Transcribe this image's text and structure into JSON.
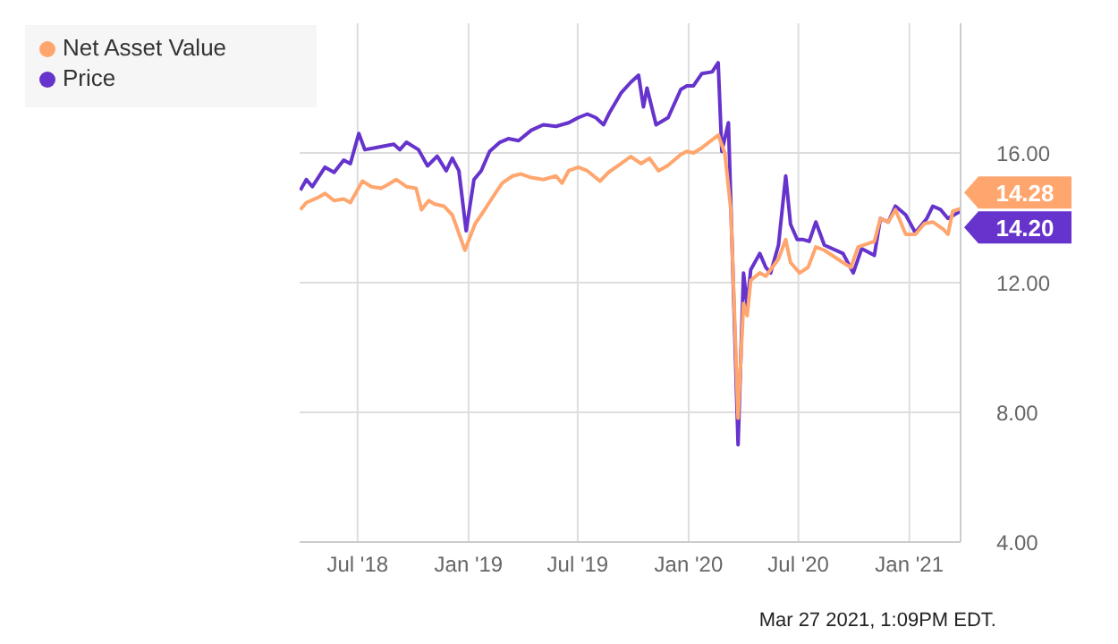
{
  "chart_data": {
    "type": "line",
    "xlim": [
      "2018-03-27",
      "2021-03-27"
    ],
    "xticks": [
      {
        "value": "2018-07-01",
        "label": "Jul '18"
      },
      {
        "value": "2019-01-01",
        "label": "Jan '19"
      },
      {
        "value": "2019-07-01",
        "label": "Jul '19"
      },
      {
        "value": "2020-01-01",
        "label": "Jan '20"
      },
      {
        "value": "2020-07-01",
        "label": "Jul '20"
      },
      {
        "value": "2021-01-01",
        "label": "Jan '21"
      }
    ],
    "ylim": [
      4,
      20
    ],
    "yticks": [
      {
        "value": 4,
        "label": "4.00"
      },
      {
        "value": 8,
        "label": "8.00"
      },
      {
        "value": 12,
        "label": "12.00"
      },
      {
        "value": 16,
        "label": "16.00"
      }
    ],
    "grid": true,
    "legend": "top left",
    "marker": "none",
    "series": [
      {
        "name": "Price",
        "color": "#6633cc",
        "x": [
          "2018-03-28",
          "2018-04-07",
          "2018-04-17",
          "2018-05-08",
          "2018-05-23",
          "2018-06-08",
          "2018-06-19",
          "2018-07-03",
          "2018-07-13",
          "2018-07-30",
          "2018-08-30",
          "2018-09-09",
          "2018-09-20",
          "2018-10-10",
          "2018-10-25",
          "2018-11-10",
          "2018-11-25",
          "2018-12-05",
          "2018-12-16",
          "2018-12-28",
          "2019-01-10",
          "2019-01-22",
          "2019-02-05",
          "2019-02-22",
          "2019-03-08",
          "2019-03-25",
          "2019-04-15",
          "2019-05-05",
          "2019-05-26",
          "2019-06-16",
          "2019-07-02",
          "2019-07-17",
          "2019-07-31",
          "2019-08-13",
          "2019-08-23",
          "2019-09-11",
          "2019-09-27",
          "2019-10-10",
          "2019-10-18",
          "2019-10-24",
          "2019-11-08",
          "2019-11-28",
          "2019-12-19",
          "2019-12-29",
          "2020-01-09",
          "2020-01-23",
          "2020-02-09",
          "2020-02-19",
          "2020-02-25",
          "2020-03-07",
          "2020-03-23",
          "2020-04-01",
          "2020-04-07",
          "2020-04-13",
          "2020-04-28",
          "2020-05-08",
          "2020-05-16",
          "2020-05-29",
          "2020-06-10",
          "2020-06-18",
          "2020-06-29",
          "2020-07-09",
          "2020-07-19",
          "2020-07-30",
          "2020-08-13",
          "2020-09-13",
          "2020-09-30",
          "2020-10-14",
          "2020-11-04",
          "2020-11-14",
          "2020-11-27",
          "2020-12-09",
          "2020-12-26",
          "2021-01-11",
          "2021-01-30",
          "2021-02-09",
          "2021-02-22",
          "2021-03-06",
          "2021-03-26"
        ],
        "values": [
          14.85,
          15.18,
          14.96,
          15.56,
          15.4,
          15.78,
          15.67,
          16.6,
          16.1,
          16.16,
          16.27,
          16.1,
          16.33,
          16.1,
          15.6,
          15.9,
          15.45,
          15.84,
          15.45,
          13.6,
          15.18,
          15.45,
          16.05,
          16.33,
          16.44,
          16.38,
          16.7,
          16.87,
          16.82,
          16.93,
          17.09,
          17.2,
          17.09,
          16.87,
          17.25,
          17.85,
          18.18,
          18.4,
          17.42,
          18.0,
          16.87,
          17.09,
          17.96,
          18.07,
          18.07,
          18.45,
          18.5,
          18.78,
          16.05,
          16.93,
          7.0,
          12.3,
          11.3,
          12.4,
          12.9,
          12.47,
          12.3,
          13.16,
          15.29,
          13.8,
          13.33,
          13.33,
          13.27,
          13.87,
          13.16,
          12.9,
          12.3,
          13.05,
          12.84,
          13.98,
          13.87,
          14.36,
          14.09,
          13.54,
          13.98,
          14.36,
          14.25,
          13.98,
          14.2
        ]
      },
      {
        "name": "Net Asset Value",
        "color": "#ffa66f",
        "x": [
          "2018-03-28",
          "2018-04-07",
          "2018-04-28",
          "2018-05-08",
          "2018-05-23",
          "2018-06-08",
          "2018-06-19",
          "2018-07-09",
          "2018-07-24",
          "2018-08-09",
          "2018-08-20",
          "2018-09-03",
          "2018-09-20",
          "2018-10-06",
          "2018-10-15",
          "2018-10-27",
          "2018-11-06",
          "2018-11-21",
          "2018-12-05",
          "2018-12-26",
          "2019-01-12",
          "2019-01-26",
          "2019-02-12",
          "2019-02-26",
          "2019-03-15",
          "2019-03-29",
          "2019-04-15",
          "2019-05-05",
          "2019-05-26",
          "2019-06-05",
          "2019-06-16",
          "2019-07-02",
          "2019-07-17",
          "2019-08-07",
          "2019-08-21",
          "2019-09-11",
          "2019-09-27",
          "2019-10-14",
          "2019-10-28",
          "2019-11-12",
          "2019-11-28",
          "2019-12-19",
          "2019-12-29",
          "2020-01-09",
          "2020-01-23",
          "2020-02-19",
          "2020-03-01",
          "2020-03-11",
          "2020-03-23",
          "2020-04-01",
          "2020-04-07",
          "2020-04-13",
          "2020-04-28",
          "2020-05-08",
          "2020-05-29",
          "2020-06-10",
          "2020-06-18",
          "2020-07-03",
          "2020-07-17",
          "2020-07-30",
          "2020-08-13",
          "2020-09-13",
          "2020-09-26",
          "2020-10-08",
          "2020-11-04",
          "2020-11-14",
          "2020-11-27",
          "2020-12-09",
          "2020-12-26",
          "2021-01-11",
          "2021-01-26",
          "2021-02-09",
          "2021-02-26",
          "2021-03-06",
          "2021-03-14",
          "2021-03-26"
        ],
        "values": [
          14.25,
          14.47,
          14.64,
          14.75,
          14.53,
          14.58,
          14.47,
          15.13,
          14.96,
          14.91,
          15.02,
          15.18,
          14.96,
          14.91,
          14.25,
          14.53,
          14.42,
          14.36,
          14.09,
          13.0,
          13.82,
          14.2,
          14.69,
          15.07,
          15.29,
          15.35,
          15.24,
          15.18,
          15.29,
          15.07,
          15.45,
          15.56,
          15.45,
          15.13,
          15.4,
          15.67,
          15.89,
          15.67,
          15.84,
          15.45,
          15.62,
          15.95,
          16.05,
          16.0,
          16.16,
          16.55,
          16.0,
          14.25,
          7.82,
          11.36,
          10.98,
          12.07,
          12.3,
          12.2,
          12.73,
          13.33,
          12.62,
          12.3,
          12.47,
          13.1,
          13.0,
          12.62,
          12.47,
          13.1,
          13.27,
          13.98,
          13.87,
          14.25,
          13.49,
          13.49,
          13.82,
          13.87,
          13.65,
          13.49,
          14.2,
          14.28
        ]
      }
    ],
    "annotations": [
      {
        "text": "14.28",
        "x": "2021-03-26",
        "y": 14.28
      },
      {
        "text": "14.20",
        "x": "2021-03-26",
        "y": 14.2
      },
      "Mar 27 2021, 1:09PM EDT."
    ]
  }
}
